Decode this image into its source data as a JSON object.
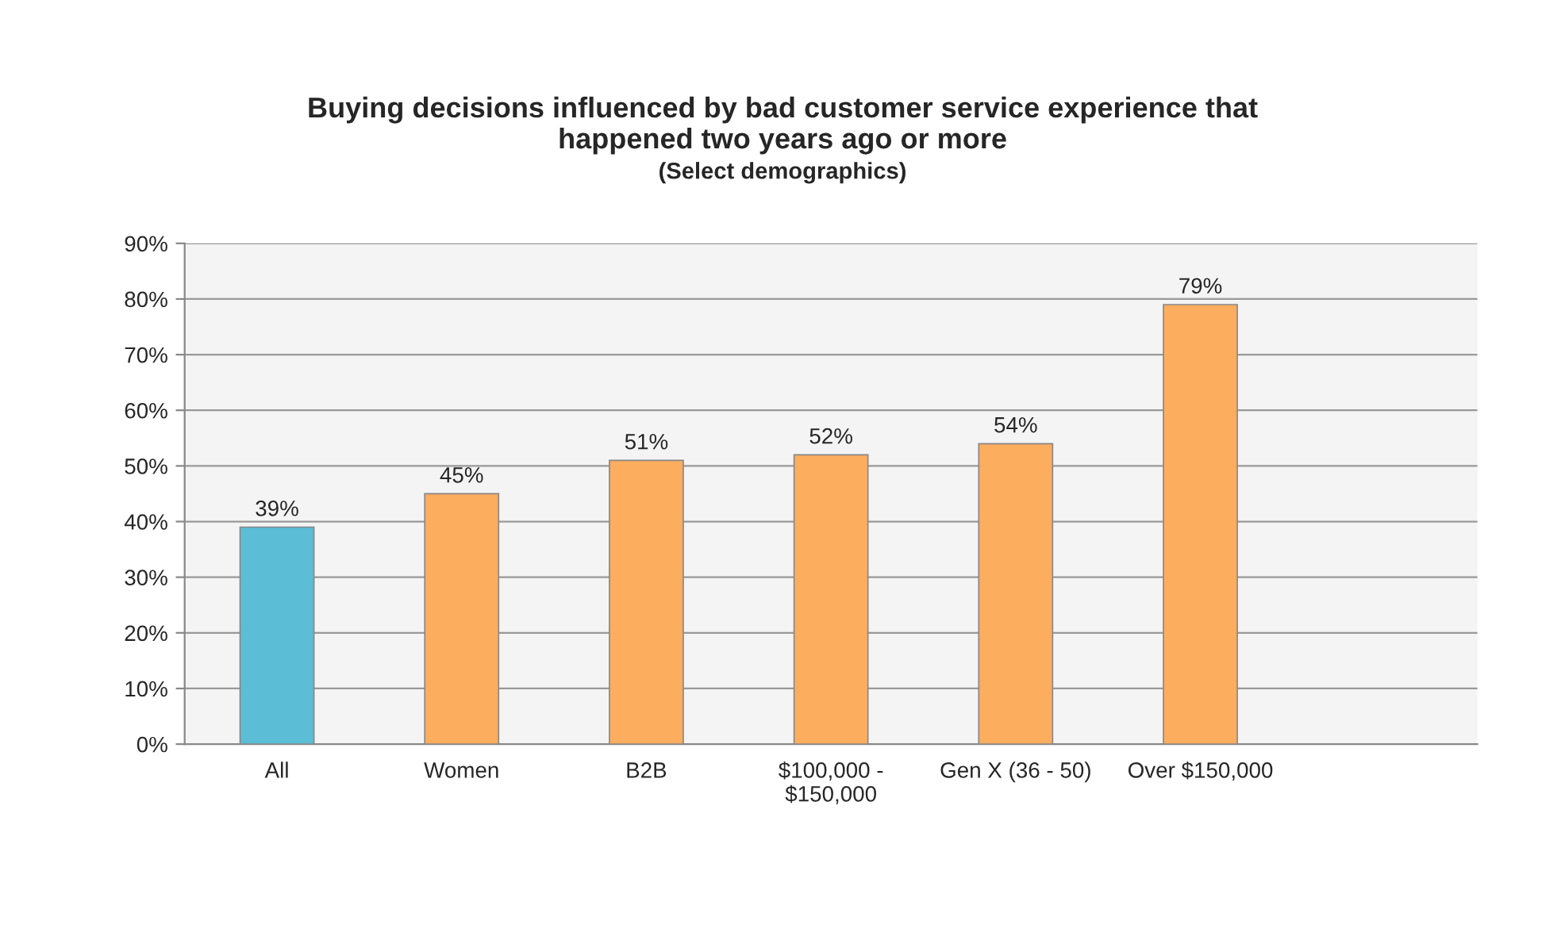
{
  "chart_data": {
    "type": "bar",
    "title": "Buying decisions influenced by bad customer service experience that\nhappened two years ago or more",
    "subtitle": "(Select demographics)",
    "categories": [
      "All",
      "Women",
      "B2B",
      "$100,000 -\n$150,000",
      "Gen X (36 - 50)",
      "Over $150,000",
      null
    ],
    "values": [
      39,
      45,
      51,
      52,
      54,
      79,
      null
    ],
    "colors": [
      "#5bbdd6",
      "#fdad5e",
      "#fdad5e",
      "#fdad5e",
      "#fdad5e",
      "#fdad5e",
      "#fdad5e"
    ],
    "value_labels": [
      "39%",
      "45%",
      "51%",
      "52%",
      "54%",
      "79%",
      null
    ],
    "ylim": [
      0,
      90
    ],
    "yticks": [
      {
        "value": 0,
        "label": "0%"
      },
      {
        "value": 10,
        "label": "10%"
      },
      {
        "value": 20,
        "label": "20%"
      },
      {
        "value": 30,
        "label": "30%"
      },
      {
        "value": 40,
        "label": "40%"
      },
      {
        "value": 50,
        "label": "50%"
      },
      {
        "value": 60,
        "label": "60%"
      },
      {
        "value": 70,
        "label": "70%"
      },
      {
        "value": 80,
        "label": "80%"
      },
      {
        "value": 90,
        "label": "90%"
      }
    ],
    "grid": "y"
  }
}
